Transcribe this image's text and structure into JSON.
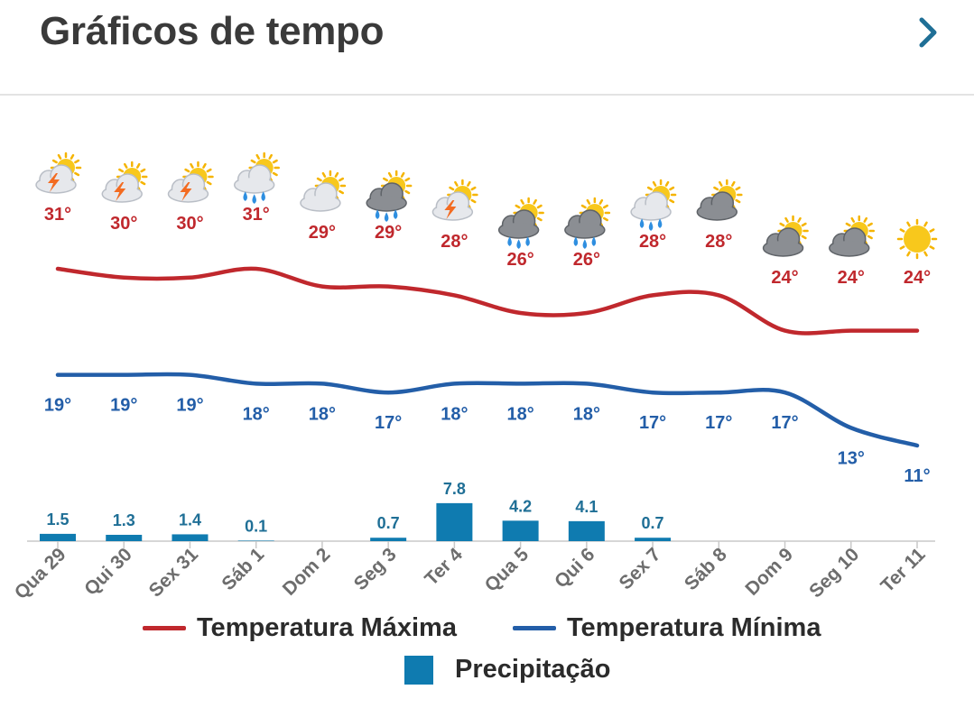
{
  "header": {
    "title": "Gráficos de tempo",
    "next_icon": "chevron-right-icon"
  },
  "colors": {
    "max": "#c0282d",
    "min": "#235ea8",
    "precip": "#0f7bb0",
    "precip_label": "#1f6f96"
  },
  "chart_data": {
    "type": "line",
    "categories": [
      "Qua 29",
      "Qui 30",
      "Sex 31",
      "Sáb 1",
      "Dom 2",
      "Seg 3",
      "Ter 4",
      "Qua 5",
      "Qui 6",
      "Sex 7",
      "Sáb 8",
      "Dom 9",
      "Seg 10",
      "Ter 11"
    ],
    "icons": [
      "storm-partly-cloudy-icon",
      "storm-partly-cloudy-icon",
      "storm-partly-cloudy-icon",
      "rain-partly-cloudy-icon",
      "partly-cloudy-icon",
      "rain-cloudy-icon",
      "storm-partly-cloudy-icon",
      "rain-cloudy-icon",
      "rain-cloudy-icon",
      "rain-partly-cloudy-icon",
      "cloudy-icon",
      "cloudy-icon",
      "cloudy-icon",
      "sunny-icon"
    ],
    "series": [
      {
        "name": "Temperatura Máxima",
        "values": [
          31,
          30,
          30,
          31,
          29,
          29,
          28,
          26,
          26,
          28,
          28,
          24,
          24,
          24
        ],
        "labels": [
          "31°",
          "30°",
          "30°",
          "31°",
          "29°",
          "29°",
          "28°",
          "26°",
          "26°",
          "28°",
          "28°",
          "24°",
          "24°",
          "24°"
        ]
      },
      {
        "name": "Temperatura Mínima",
        "values": [
          19,
          19,
          19,
          18,
          18,
          17,
          18,
          18,
          18,
          17,
          17,
          17,
          13,
          11
        ],
        "labels": [
          "19°",
          "19°",
          "19°",
          "18°",
          "18°",
          "17°",
          "18°",
          "18°",
          "18°",
          "17°",
          "17°",
          "17°",
          "13°",
          "11°"
        ]
      },
      {
        "name": "Precipitação",
        "type": "bar",
        "values": [
          1.5,
          1.3,
          1.4,
          0.1,
          0,
          0.7,
          7.8,
          4.2,
          4.1,
          0.7,
          0,
          0,
          0,
          0
        ],
        "labels": [
          "1.5",
          "1.3",
          "1.4",
          "0.1",
          "",
          "0.7",
          "7.8",
          "4.2",
          "4.1",
          "0.7",
          "",
          "",
          "",
          ""
        ]
      }
    ]
  },
  "legend": {
    "max": "Temperatura Máxima",
    "min": "Temperatura Mínima",
    "precip": "Precipitação"
  }
}
